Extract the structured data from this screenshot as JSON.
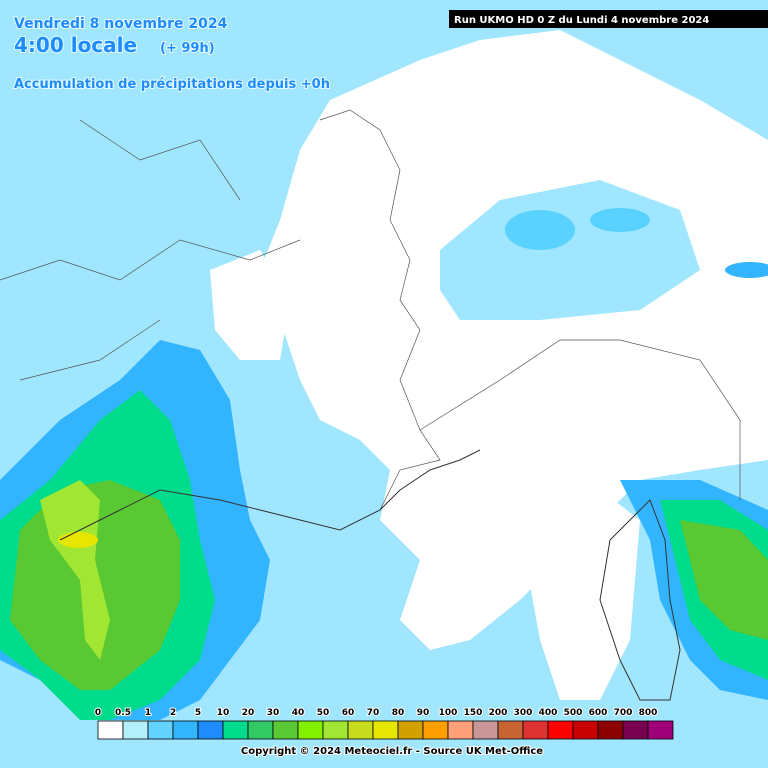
{
  "header": {
    "date": "Vendredi 8 novembre 2024",
    "time": "4:00 locale",
    "offset": "(+ 99h)",
    "subtitle": "Accumulation de précipitations depuis +0h",
    "run": "Run UKMO HD 0 Z du Lundi 4 novembre 2024"
  },
  "legend": {
    "items": [
      {
        "label": "0",
        "color": "#ffffff"
      },
      {
        "label": "0.5",
        "color": "#b4f0fa"
      },
      {
        "label": "1",
        "color": "#64d2ff"
      },
      {
        "label": "2",
        "color": "#32b4ff"
      },
      {
        "label": "5",
        "color": "#1e8cff"
      },
      {
        "label": "10",
        "color": "#00dc8c"
      },
      {
        "label": "20",
        "color": "#32c864"
      },
      {
        "label": "30",
        "color": "#5ac832"
      },
      {
        "label": "40",
        "color": "#82f000"
      },
      {
        "label": "50",
        "color": "#a0e632"
      },
      {
        "label": "60",
        "color": "#c8dc1e"
      },
      {
        "label": "70",
        "color": "#e6e600"
      },
      {
        "label": "80",
        "color": "#d2a000"
      },
      {
        "label": "90",
        "color": "#ffa000"
      },
      {
        "label": "100",
        "color": "#ffa078"
      },
      {
        "label": "150",
        "color": "#c89696"
      },
      {
        "label": "200",
        "color": "#c86432"
      },
      {
        "label": "300",
        "color": "#dc3232"
      },
      {
        "label": "400",
        "color": "#ff0000"
      },
      {
        "label": "500",
        "color": "#c80000"
      },
      {
        "label": "600",
        "color": "#8c0000"
      },
      {
        "label": "700",
        "color": "#780050"
      },
      {
        "label": "800",
        "color": "#a00078"
      }
    ]
  },
  "footer": {
    "copyright": "Copyright © 2024 Meteociel.fr - Source UK Met-Office"
  }
}
